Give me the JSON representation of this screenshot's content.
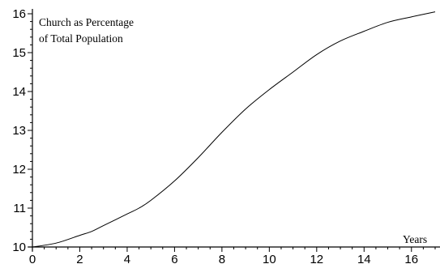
{
  "chart_data": {
    "type": "line",
    "title_lines": [
      "Church as Percentage",
      "of Total Population"
    ],
    "xlabel": "Years",
    "ylabel": "",
    "xlim": [
      0,
      17
    ],
    "ylim": [
      10,
      16
    ],
    "x_ticks": [
      0,
      2,
      4,
      6,
      8,
      10,
      12,
      14,
      16
    ],
    "y_ticks": [
      10,
      11,
      12,
      13,
      14,
      15,
      16
    ],
    "grid": false,
    "series": [
      {
        "x": [
          0,
          1,
          2,
          2.5,
          3,
          4,
          4.5,
          5,
          6,
          7,
          8,
          9,
          10,
          11,
          12,
          13,
          14,
          15,
          16,
          17
        ],
        "y": [
          10.0,
          10.1,
          10.3,
          10.4,
          10.55,
          10.85,
          11.0,
          11.2,
          11.7,
          12.3,
          12.95,
          13.55,
          14.05,
          14.5,
          14.95,
          15.3,
          15.55,
          15.78,
          15.92,
          16.05
        ]
      }
    ]
  }
}
